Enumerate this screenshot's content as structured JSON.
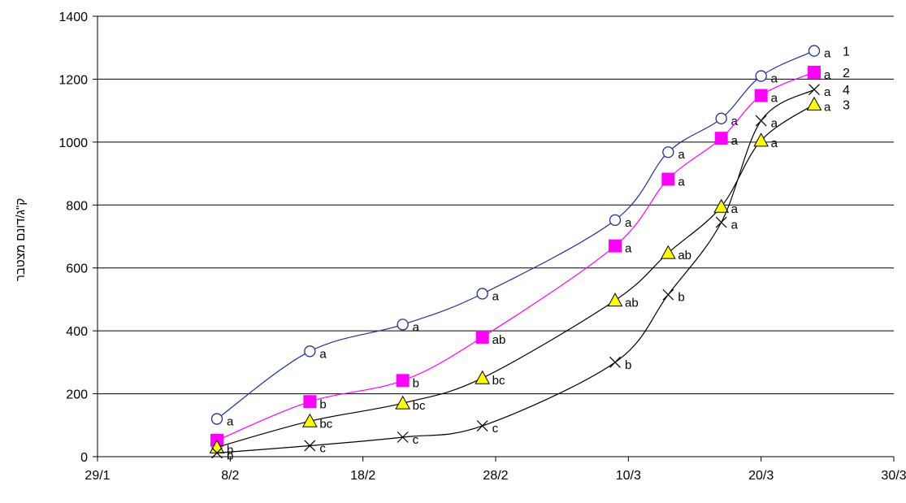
{
  "chart_data": {
    "type": "line",
    "title": "",
    "xlabel": "",
    "ylabel": "ק\"ג/דונם מצטבר",
    "xlim": [
      "29/1",
      "30/3"
    ],
    "ylim": [
      0,
      1400
    ],
    "x_ticks": [
      "29/1",
      "8/2",
      "18/2",
      "28/2",
      "10/3",
      "20/3",
      "30/3"
    ],
    "y_ticks": [
      0,
      200,
      400,
      600,
      800,
      1000,
      1200,
      1400
    ],
    "grid": "horizontal",
    "x_dates": [
      "7/2",
      "14/2",
      "21/2",
      "27/2",
      "9/3",
      "13/3",
      "17/3",
      "20/3",
      "24/3"
    ],
    "series": [
      {
        "name": "1",
        "color": "#1f2f9a",
        "marker": "circle",
        "points": [
          {
            "x": "7/2",
            "y": 120,
            "label": "a"
          },
          {
            "x": "14/2",
            "y": 335,
            "label": "a"
          },
          {
            "x": "21/2",
            "y": 420,
            "label": "a"
          },
          {
            "x": "27/2",
            "y": 518,
            "label": "a"
          },
          {
            "x": "9/3",
            "y": 752,
            "label": "a"
          },
          {
            "x": "13/3",
            "y": 968,
            "label": "a"
          },
          {
            "x": "17/3",
            "y": 1075,
            "label": "a"
          },
          {
            "x": "20/3",
            "y": 1210,
            "label": "a"
          },
          {
            "x": "24/3",
            "y": 1290,
            "label": "a"
          }
        ]
      },
      {
        "name": "2",
        "color": "#ff00ff",
        "marker": "square",
        "points": [
          {
            "x": "7/2",
            "y": 52,
            "label": ""
          },
          {
            "x": "14/2",
            "y": 175,
            "label": "b"
          },
          {
            "x": "21/2",
            "y": 242,
            "label": "b"
          },
          {
            "x": "27/2",
            "y": 380,
            "label": "ab"
          },
          {
            "x": "9/3",
            "y": 670,
            "label": "a"
          },
          {
            "x": "13/3",
            "y": 882,
            "label": "a"
          },
          {
            "x": "17/3",
            "y": 1012,
            "label": "a"
          },
          {
            "x": "20/3",
            "y": 1148,
            "label": "a"
          },
          {
            "x": "24/3",
            "y": 1222,
            "label": "a"
          }
        ]
      },
      {
        "name": "3",
        "color": "#000000",
        "marker": "triangle",
        "points": [
          {
            "x": "7/2",
            "y": 30,
            "label": "b"
          },
          {
            "x": "14/2",
            "y": 113,
            "label": "bc"
          },
          {
            "x": "21/2",
            "y": 170,
            "label": "bc"
          },
          {
            "x": "27/2",
            "y": 250,
            "label": "bc"
          },
          {
            "x": "9/3",
            "y": 497,
            "label": "ab"
          },
          {
            "x": "13/3",
            "y": 648,
            "label": "ab"
          },
          {
            "x": "17/3",
            "y": 795,
            "label": "a"
          },
          {
            "x": "20/3",
            "y": 1005,
            "label": "a"
          },
          {
            "x": "24/3",
            "y": 1120,
            "label": "a"
          }
        ]
      },
      {
        "name": "4",
        "color": "#000000",
        "marker": "x",
        "points": [
          {
            "x": "7/2",
            "y": 12,
            "label": "b"
          },
          {
            "x": "14/2",
            "y": 35,
            "label": "c"
          },
          {
            "x": "21/2",
            "y": 62,
            "label": "c"
          },
          {
            "x": "27/2",
            "y": 98,
            "label": "c"
          },
          {
            "x": "9/3",
            "y": 300,
            "label": "b"
          },
          {
            "x": "13/3",
            "y": 515,
            "label": "b"
          },
          {
            "x": "17/3",
            "y": 745,
            "label": "a"
          },
          {
            "x": "20/3",
            "y": 1068,
            "label": "a"
          },
          {
            "x": "24/3",
            "y": 1167,
            "label": "a"
          }
        ]
      }
    ]
  }
}
